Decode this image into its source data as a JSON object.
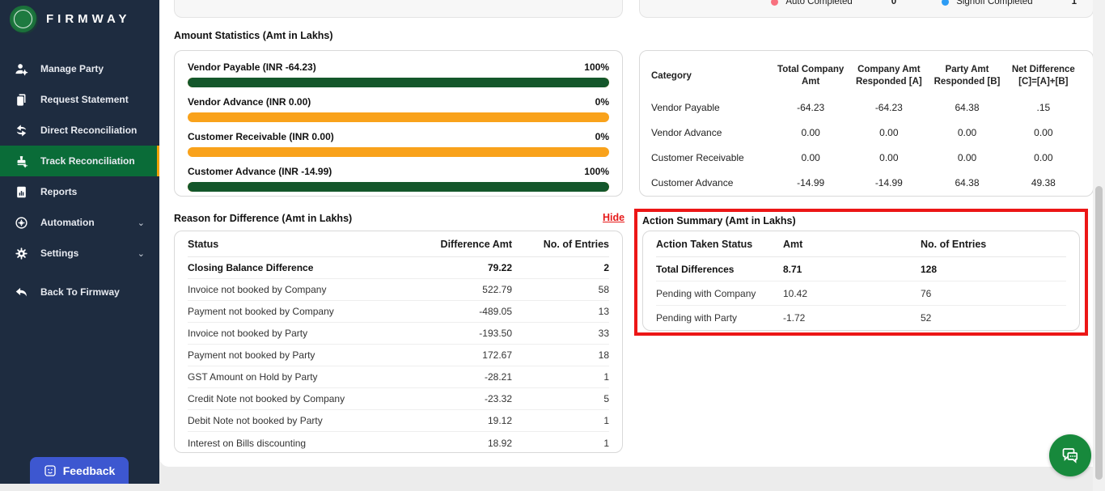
{
  "sidebar": {
    "brand": "FIRMWAY",
    "items": [
      {
        "label": "Manage Party",
        "icon": "manage-party-icon",
        "active": false,
        "chevron": false
      },
      {
        "label": "Request Statement",
        "icon": "request-statement-icon",
        "active": false,
        "chevron": false
      },
      {
        "label": "Direct Reconciliation",
        "icon": "direct-reconciliation-icon",
        "active": false,
        "chevron": false
      },
      {
        "label": "Track Reconciliation",
        "icon": "track-reconciliation-icon",
        "active": true,
        "chevron": false
      },
      {
        "label": "Reports",
        "icon": "reports-icon",
        "active": false,
        "chevron": false
      },
      {
        "label": "Automation",
        "icon": "automation-icon",
        "active": false,
        "chevron": true
      },
      {
        "label": "Settings",
        "icon": "settings-icon",
        "active": false,
        "chevron": true
      },
      {
        "label": "Back To Firmway",
        "icon": "back-icon",
        "active": false,
        "chevron": false
      }
    ],
    "active_bg": "#0a6c38",
    "active_edge": "#f2a104",
    "feedback_label": "Feedback"
  },
  "header_legend": {
    "items": [
      {
        "label": "Auto Completed",
        "value": "0",
        "color": "#f8717f"
      },
      {
        "label": "Signoff Completed",
        "value": "1",
        "color": "#2d9cf4"
      }
    ]
  },
  "amount_statistics": {
    "title": "Amount Statistics (Amt in Lakhs)",
    "fill_color": "#14572b",
    "track_color": "#f9a21b",
    "bars": [
      {
        "label": "Vendor Payable (INR -64.23)",
        "percent": 100,
        "percent_label": "100%"
      },
      {
        "label": "Vendor Advance (INR 0.00)",
        "percent": 0,
        "percent_label": "0%"
      },
      {
        "label": "Customer Receivable (INR 0.00)",
        "percent": 0,
        "percent_label": "0%"
      },
      {
        "label": "Customer Advance (INR -14.99)",
        "percent": 100,
        "percent_label": "100%"
      }
    ]
  },
  "category_table": {
    "headers": [
      "Category",
      "Total Company Amt",
      "Company Amt Responded [A]",
      "Party Amt Responded [B]",
      "Net Difference [C]=[A]+[B]"
    ],
    "rows": [
      {
        "category": "Vendor Payable",
        "total": "-64.23",
        "responded_a": "-64.23",
        "responded_b": "64.38",
        "net_diff": ".15"
      },
      {
        "category": "Vendor Advance",
        "total": "0.00",
        "responded_a": "0.00",
        "responded_b": "0.00",
        "net_diff": "0.00"
      },
      {
        "category": "Customer Receivable",
        "total": "0.00",
        "responded_a": "0.00",
        "responded_b": "0.00",
        "net_diff": "0.00"
      },
      {
        "category": "Customer Advance",
        "total": "-14.99",
        "responded_a": "-14.99",
        "responded_b": "64.38",
        "net_diff": "49.38"
      }
    ]
  },
  "reason": {
    "title": "Reason for Difference (Amt in Lakhs)",
    "hide_label": "Hide",
    "headers": [
      "Status",
      "Difference Amt",
      "No. of Entries"
    ],
    "rows": [
      {
        "status": "Closing Balance Difference",
        "amount": "79.22",
        "entries": "2"
      },
      {
        "status": "Invoice not booked by Company",
        "amount": "522.79",
        "entries": "58"
      },
      {
        "status": "Payment not booked by Company",
        "amount": "-489.05",
        "entries": "13"
      },
      {
        "status": "Invoice not booked by Party",
        "amount": "-193.50",
        "entries": "33"
      },
      {
        "status": "Payment not booked by Party",
        "amount": "172.67",
        "entries": "18"
      },
      {
        "status": "GST Amount on Hold by Party",
        "amount": "-28.21",
        "entries": "1"
      },
      {
        "status": "Credit Note not booked by Company",
        "amount": "-23.32",
        "entries": "5"
      },
      {
        "status": "Debit Note not booked by Party",
        "amount": "19.12",
        "entries": "1"
      },
      {
        "status": "Interest on Bills discounting",
        "amount": "18.92",
        "entries": "1"
      }
    ]
  },
  "action_summary": {
    "title": "Action Summary (Amt in Lakhs)",
    "annotation_color": "#ec1616",
    "headers": [
      "Action Taken Status",
      "Amt",
      "No. of Entries"
    ],
    "rows": [
      {
        "status": "Total Differences",
        "amount": "8.71",
        "entries": "128"
      },
      {
        "status": "Pending with Company",
        "amount": "10.42",
        "entries": "76"
      },
      {
        "status": "Pending with Party",
        "amount": "-1.72",
        "entries": "52"
      }
    ]
  }
}
